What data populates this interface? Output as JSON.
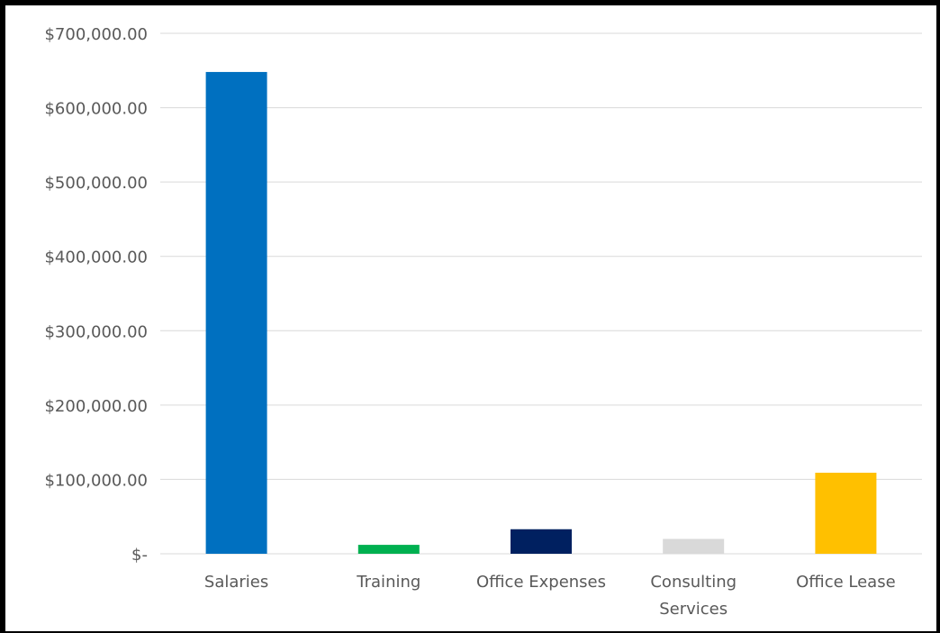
{
  "chart_data": {
    "type": "bar",
    "title": "",
    "xlabel": "",
    "ylabel": "",
    "categories": [
      [
        "Salaries"
      ],
      [
        "Training"
      ],
      [
        "Office Expenses"
      ],
      [
        "Consulting",
        "Services"
      ],
      [
        "Office Lease"
      ]
    ],
    "values": [
      648000,
      12000,
      33000,
      20000,
      109000
    ],
    "colors": [
      "#0070c0",
      "#00b050",
      "#002060",
      "#d9d9d9",
      "#ffc000"
    ],
    "ylim": [
      0,
      700000
    ],
    "yticks": [
      {
        "value": 0,
        "label": "$-"
      },
      {
        "value": 100000,
        "label": "$100,000.00"
      },
      {
        "value": 200000,
        "label": "$200,000.00"
      },
      {
        "value": 300000,
        "label": "$300,000.00"
      },
      {
        "value": 400000,
        "label": "$400,000.00"
      },
      {
        "value": 500000,
        "label": "$500,000.00"
      },
      {
        "value": 600000,
        "label": "$600,000.00"
      },
      {
        "value": 700000,
        "label": "$700,000.00"
      }
    ],
    "grid": true,
    "gridline_color": "#d9d9d9",
    "legend": "none"
  }
}
